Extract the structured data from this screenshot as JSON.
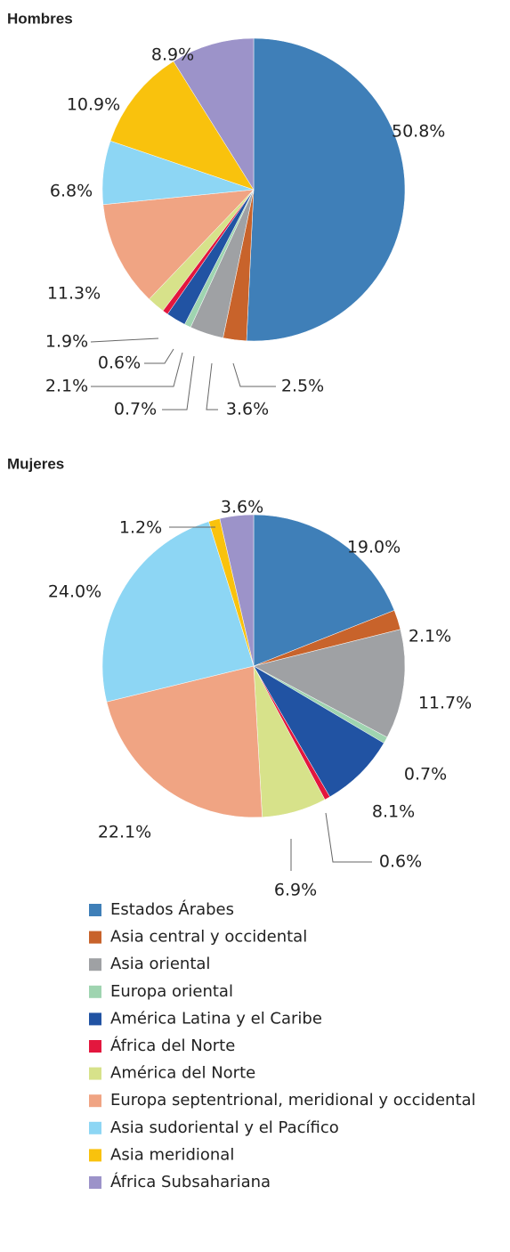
{
  "legend": {
    "labels": [
      "Estados Árabes",
      "Asia central y occidental",
      "Asia oriental",
      "Europa oriental",
      "América Latina y el Caribe",
      "África del Norte",
      "América del Norte",
      "Europa septentrional, meridional y occidental",
      "Asia sudoriental y el Pacífico",
      "Asia meridional",
      "África Subsahariana"
    ],
    "colors": [
      "#3f7fb8",
      "#c8632b",
      "#9fa1a4",
      "#9fd4b0",
      "#2153a3",
      "#e3173e",
      "#d7e28a",
      "#f0a483",
      "#8dd6f4",
      "#f9c20d",
      "#9c93c9"
    ]
  },
  "chart_data": [
    {
      "type": "pie",
      "title": "Hombres",
      "values": [
        50.8,
        2.5,
        3.6,
        0.7,
        2.1,
        0.6,
        1.9,
        11.3,
        6.8,
        10.9,
        8.9
      ],
      "value_labels": [
        "50.8%",
        "2.5%",
        "3.6%",
        "0.7%",
        "2.1%",
        "0.6%",
        "1.9%",
        "11.3%",
        "6.8%",
        "10.9%",
        "8.9%"
      ]
    },
    {
      "type": "pie",
      "title": "Mujeres",
      "values": [
        19.0,
        2.1,
        11.7,
        0.7,
        8.1,
        0.6,
        6.9,
        22.1,
        24.0,
        1.2,
        3.6
      ],
      "value_labels": [
        "19.0%",
        "2.1%",
        "11.7%",
        "0.7%",
        "8.1%",
        "0.6%",
        "6.9%",
        "22.1%",
        "24.0%",
        "1.2%",
        "3.6%"
      ]
    }
  ]
}
